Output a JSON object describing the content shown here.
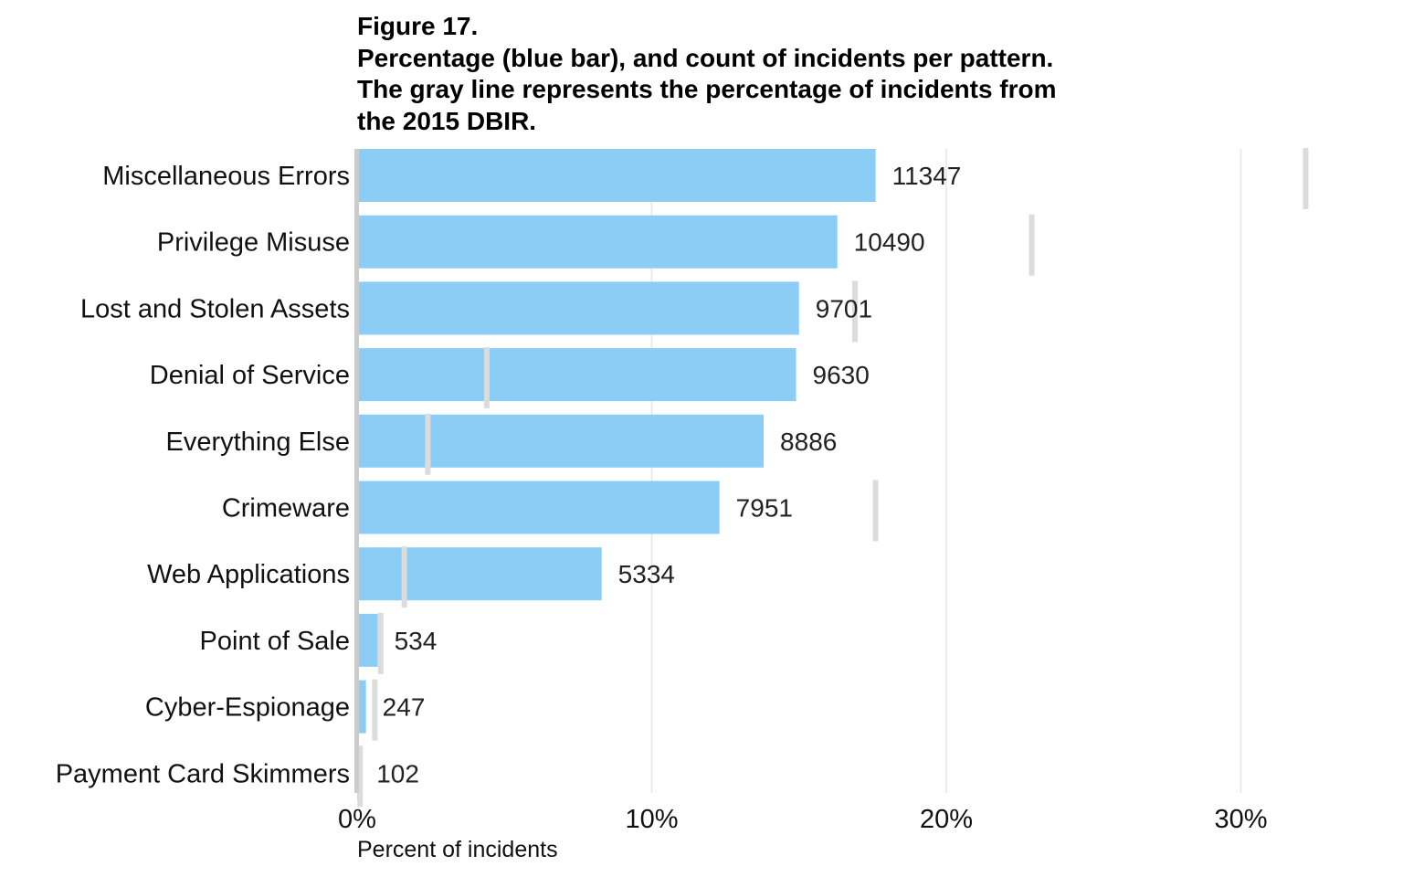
{
  "chart_data": {
    "type": "bar",
    "orientation": "horizontal",
    "title_lines": [
      "Figure 17.",
      "Percentage (blue bar), and count of incidents per pattern.",
      "The gray line represents the percentage of incidents from",
      "the 2015 DBIR."
    ],
    "xlabel": "Percent of incidents",
    "xlim": [
      0,
      35
    ],
    "xticks": [
      0,
      10,
      20,
      30
    ],
    "xtick_labels": [
      "0%",
      "10%",
      "20%",
      "30%"
    ],
    "categories": [
      "Miscellaneous Errors",
      "Privilege Misuse",
      "Lost and Stolen Assets",
      "Denial of Service",
      "Everything Else",
      "Crimeware",
      "Web Applications",
      "Point of Sale",
      "Cyber-Espionage",
      "Payment Card Skimmers"
    ],
    "series": [
      {
        "name": "Percentage of incidents",
        "values": [
          17.6,
          16.3,
          15.0,
          14.9,
          13.8,
          12.3,
          8.3,
          0.7,
          0.3,
          0.1
        ]
      },
      {
        "name": "Count of incidents",
        "values": [
          11347,
          10490,
          9701,
          9630,
          8886,
          7951,
          5334,
          534,
          247,
          102
        ]
      },
      {
        "name": "2015 DBIR percentage",
        "values": [
          32.2,
          22.9,
          16.9,
          4.4,
          2.4,
          17.6,
          1.6,
          0.8,
          0.6,
          0.1
        ]
      }
    ],
    "grid": true,
    "colors": {
      "bar": "#8CCDF5",
      "reference_line": "#DCDCDC",
      "grid": "#E6E6E6",
      "axis": "#CCCCCC"
    }
  }
}
